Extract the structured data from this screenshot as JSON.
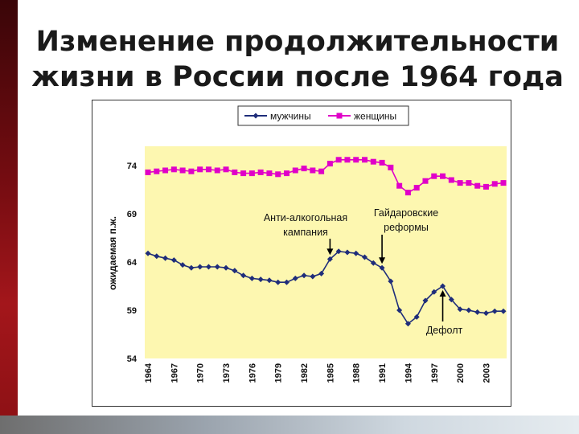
{
  "title_line1": "Изменение продолжительности",
  "title_line2": "жизни в России после 1964 года",
  "chart_data": {
    "type": "line",
    "ylabel": "ожидаемая п.ж.",
    "ylim": [
      54,
      76
    ],
    "yticks": [
      54,
      59,
      64,
      69,
      74
    ],
    "x": [
      1964,
      1965,
      1966,
      1967,
      1968,
      1969,
      1970,
      1971,
      1972,
      1973,
      1974,
      1975,
      1976,
      1977,
      1978,
      1979,
      1980,
      1981,
      1982,
      1983,
      1984,
      1985,
      1986,
      1987,
      1988,
      1989,
      1990,
      1991,
      1992,
      1993,
      1994,
      1995,
      1996,
      1997,
      1998,
      1999,
      2000,
      2001,
      2002,
      2003,
      2004,
      2005
    ],
    "xticks": [
      1964,
      1967,
      1970,
      1973,
      1976,
      1979,
      1982,
      1985,
      1988,
      1991,
      1994,
      1997,
      2000,
      2003
    ],
    "legend_position": "top",
    "series": [
      {
        "name": "мужчины",
        "color": "#1f2d7a",
        "marker": "diamond",
        "values": [
          64.9,
          64.6,
          64.4,
          64.2,
          63.7,
          63.4,
          63.5,
          63.5,
          63.5,
          63.4,
          63.1,
          62.6,
          62.3,
          62.2,
          62.1,
          61.9,
          61.9,
          62.3,
          62.6,
          62.5,
          62.8,
          64.3,
          65.1,
          65.0,
          64.9,
          64.5,
          63.9,
          63.4,
          62.0,
          59.0,
          57.6,
          58.3,
          60.0,
          60.9,
          61.5,
          60.1,
          59.1,
          59.0,
          58.8,
          58.7,
          58.9,
          58.9
        ]
      },
      {
        "name": "женщины",
        "color": "#e000c8",
        "marker": "square",
        "values": [
          73.3,
          73.4,
          73.5,
          73.6,
          73.5,
          73.4,
          73.6,
          73.6,
          73.5,
          73.6,
          73.3,
          73.2,
          73.2,
          73.3,
          73.2,
          73.1,
          73.2,
          73.5,
          73.7,
          73.5,
          73.4,
          74.2,
          74.6,
          74.6,
          74.6,
          74.6,
          74.4,
          74.3,
          73.8,
          71.9,
          71.2,
          71.7,
          72.4,
          72.9,
          72.9,
          72.5,
          72.2,
          72.2,
          71.9,
          71.8,
          72.1,
          72.2
        ]
      }
    ],
    "annotations": [
      {
        "text_line1": "Анти-алкогольная",
        "text_line2": "кампания",
        "year": 1985,
        "series": 0
      },
      {
        "text_line1": "Гайдаровские",
        "text_line2": "реформы",
        "year": 1991,
        "series": 0
      },
      {
        "text_line1": "Дефолт",
        "text_line2": "",
        "year": 1998,
        "series": 0
      }
    ]
  }
}
